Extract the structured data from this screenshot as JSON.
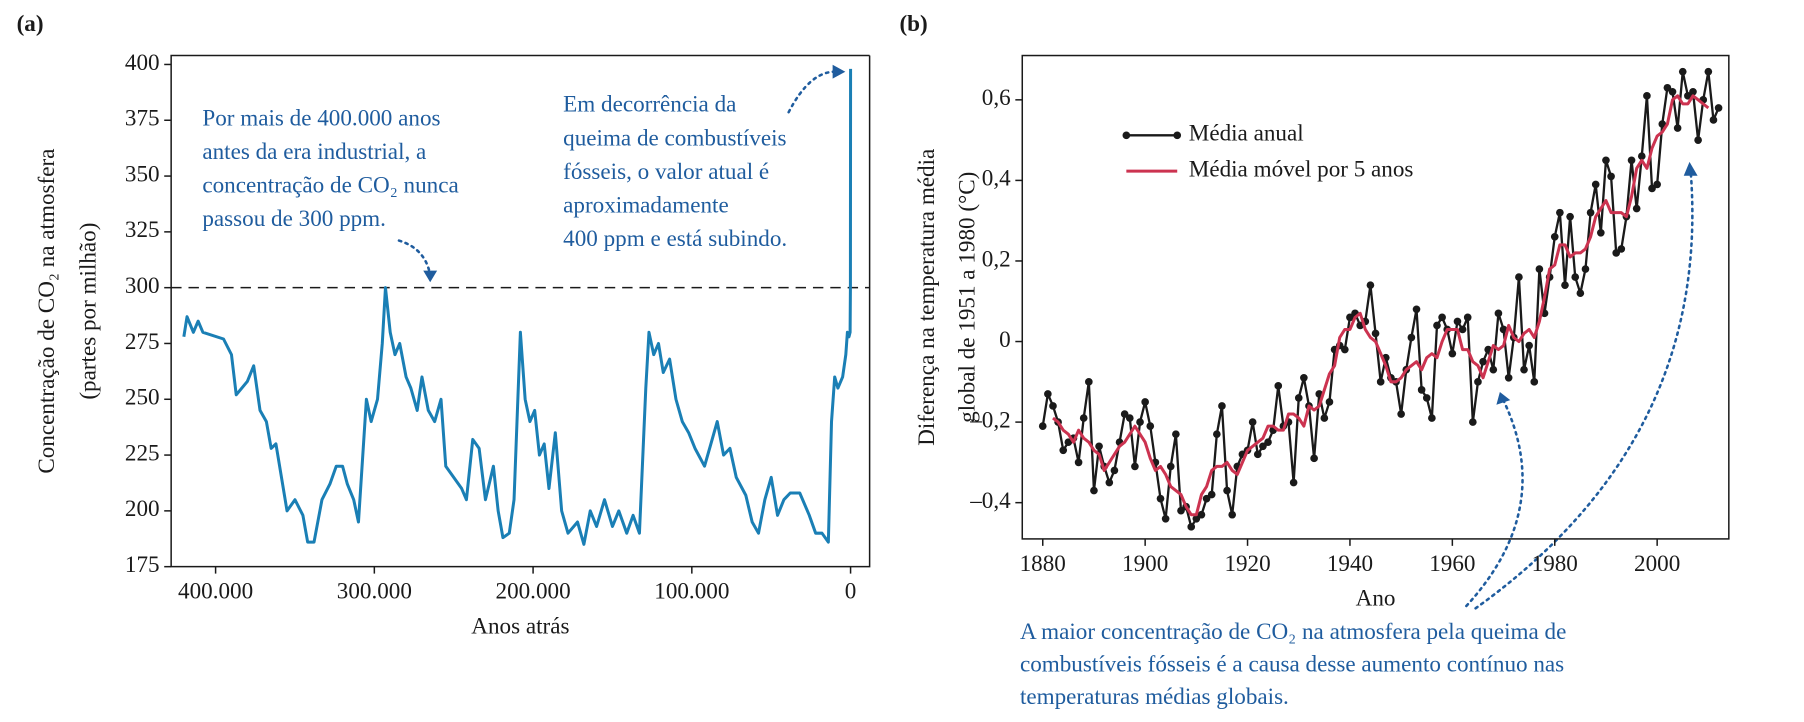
{
  "chart_data": [
    {
      "type": "line",
      "panel_label": "(a)",
      "ylabel": [
        "Concentração de CO₂ na atmosfera",
        "(partes por milhão)"
      ],
      "xlabel": "Anos atrás",
      "x": [
        420000,
        418000,
        414000,
        411000,
        408000,
        395000,
        390000,
        387000,
        380000,
        376000,
        372000,
        368000,
        365000,
        362000,
        355000,
        350000,
        345000,
        342000,
        338000,
        333000,
        328000,
        324000,
        320000,
        317000,
        313000,
        310000,
        305000,
        302000,
        298000,
        295000,
        293000,
        290000,
        287000,
        284000,
        280000,
        277000,
        273000,
        270000,
        266000,
        262000,
        258000,
        255000,
        250000,
        245000,
        242000,
        238000,
        234000,
        230000,
        225000,
        222000,
        219000,
        215000,
        212000,
        208000,
        205000,
        202000,
        199000,
        196000,
        193000,
        190000,
        186000,
        182000,
        178000,
        172000,
        168000,
        164000,
        160000,
        155000,
        150000,
        146000,
        141000,
        137000,
        133000,
        129000,
        127000,
        124000,
        121000,
        118000,
        114000,
        110000,
        106000,
        102000,
        98000,
        92000,
        88000,
        84000,
        80000,
        76000,
        72000,
        66000,
        62000,
        58000,
        54000,
        50000,
        46000,
        42000,
        38000,
        32000,
        26000,
        22000,
        18000,
        14000,
        12000,
        10000,
        8000,
        5000,
        3000,
        2000,
        1000,
        300,
        100,
        0
      ],
      "values": [
        278,
        287,
        280,
        285,
        280,
        277,
        270,
        252,
        258,
        265,
        245,
        240,
        228,
        230,
        200,
        205,
        198,
        186,
        186,
        205,
        212,
        220,
        220,
        212,
        205,
        195,
        250,
        240,
        250,
        275,
        300,
        280,
        270,
        275,
        260,
        255,
        245,
        260,
        245,
        240,
        250,
        220,
        215,
        210,
        205,
        232,
        228,
        205,
        220,
        200,
        188,
        190,
        205,
        280,
        250,
        240,
        245,
        225,
        230,
        210,
        235,
        200,
        190,
        195,
        185,
        200,
        193,
        205,
        193,
        200,
        190,
        198,
        190,
        255,
        280,
        270,
        275,
        262,
        268,
        250,
        240,
        235,
        228,
        220,
        230,
        240,
        225,
        228,
        215,
        207,
        195,
        190,
        205,
        215,
        198,
        205,
        208,
        208,
        198,
        190,
        190,
        186,
        240,
        260,
        255,
        260,
        270,
        280,
        278,
        280,
        300,
        398
      ],
      "color": "#1a7fb5",
      "xlim": [
        428000,
        -12000
      ],
      "xticks": [
        {
          "value": 400000,
          "label": "400.000"
        },
        {
          "value": 300000,
          "label": "300.000"
        },
        {
          "value": 200000,
          "label": "200.000"
        },
        {
          "value": 100000,
          "label": "100.000"
        },
        0
      ],
      "ylim": [
        175,
        404
      ],
      "yticks": [
        175,
        200,
        225,
        250,
        275,
        300,
        325,
        350,
        375,
        400
      ],
      "reference_line": 300,
      "annotations": [
        [
          "Por mais de 400.000 anos",
          "antes da era industrial, a",
          "concentração de CO₂ nunca",
          "passou de 300 ppm."
        ],
        [
          "Em decorrência da",
          "queima de combustíveis",
          "fósseis, o valor atual é",
          "aproximadamente",
          "400 ppm e está subindo."
        ]
      ]
    },
    {
      "type": "line",
      "panel_label": "(b)",
      "ylabel": [
        "Diferença na temperatura média",
        "global de 1951 a 1980 (°C)"
      ],
      "xlabel": "Ano",
      "legend": "upper left",
      "x": [
        1880,
        1881,
        1882,
        1883,
        1884,
        1885,
        1886,
        1887,
        1888,
        1889,
        1890,
        1891,
        1892,
        1893,
        1894,
        1895,
        1896,
        1897,
        1898,
        1899,
        1900,
        1901,
        1902,
        1903,
        1904,
        1905,
        1906,
        1907,
        1908,
        1909,
        1910,
        1911,
        1912,
        1913,
        1914,
        1915,
        1916,
        1917,
        1918,
        1919,
        1920,
        1921,
        1922,
        1923,
        1924,
        1925,
        1926,
        1927,
        1928,
        1929,
        1930,
        1931,
        1932,
        1933,
        1934,
        1935,
        1936,
        1937,
        1938,
        1939,
        1940,
        1941,
        1942,
        1943,
        1944,
        1945,
        1946,
        1947,
        1948,
        1949,
        1950,
        1951,
        1952,
        1953,
        1954,
        1955,
        1956,
        1957,
        1958,
        1959,
        1960,
        1961,
        1962,
        1963,
        1964,
        1965,
        1966,
        1967,
        1968,
        1969,
        1970,
        1971,
        1972,
        1973,
        1974,
        1975,
        1976,
        1977,
        1978,
        1979,
        1980,
        1981,
        1982,
        1983,
        1984,
        1985,
        1986,
        1987,
        1988,
        1989,
        1990,
        1991,
        1992,
        1993,
        1994,
        1995,
        1996,
        1997,
        1998,
        1999,
        2000,
        2001,
        2002,
        2003,
        2004,
        2005,
        2006,
        2007,
        2008,
        2009,
        2010,
        2011,
        2012
      ],
      "series": [
        {
          "name": "Média anual",
          "color": "#1a1a1a",
          "marker": true,
          "values": [
            -0.21,
            -0.13,
            -0.16,
            -0.2,
            -0.27,
            -0.25,
            -0.24,
            -0.3,
            -0.19,
            -0.1,
            -0.37,
            -0.26,
            -0.31,
            -0.35,
            -0.32,
            -0.25,
            -0.18,
            -0.19,
            -0.31,
            -0.2,
            -0.15,
            -0.21,
            -0.3,
            -0.39,
            -0.44,
            -0.31,
            -0.23,
            -0.42,
            -0.41,
            -0.46,
            -0.44,
            -0.43,
            -0.39,
            -0.38,
            -0.23,
            -0.16,
            -0.37,
            -0.43,
            -0.31,
            -0.28,
            -0.27,
            -0.2,
            -0.28,
            -0.26,
            -0.25,
            -0.22,
            -0.11,
            -0.21,
            -0.2,
            -0.35,
            -0.14,
            -0.09,
            -0.16,
            -0.29,
            -0.13,
            -0.19,
            -0.15,
            -0.02,
            -0.01,
            -0.02,
            0.06,
            0.07,
            0.04,
            0.05,
            0.14,
            0.02,
            -0.1,
            -0.04,
            -0.09,
            -0.1,
            -0.18,
            -0.07,
            0.01,
            0.08,
            -0.12,
            -0.14,
            -0.19,
            0.04,
            0.06,
            0.03,
            -0.03,
            0.05,
            0.03,
            0.06,
            -0.2,
            -0.1,
            -0.05,
            -0.02,
            -0.07,
            0.07,
            0.03,
            -0.09,
            0.01,
            0.16,
            -0.07,
            -0.01,
            -0.1,
            0.18,
            0.07,
            0.16,
            0.26,
            0.32,
            0.14,
            0.31,
            0.16,
            0.12,
            0.18,
            0.32,
            0.39,
            0.27,
            0.45,
            0.41,
            0.22,
            0.23,
            0.31,
            0.45,
            0.33,
            0.46,
            0.61,
            0.38,
            0.39,
            0.54,
            0.63,
            0.62,
            0.53,
            0.67,
            0.61,
            0.62,
            0.5,
            0.6,
            0.67,
            0.55,
            0.58
          ]
        },
        {
          "name": "Média móvel por 5 anos",
          "color": "#cc3350",
          "marker": false,
          "values": [
            null,
            null,
            -0.19,
            -0.2,
            -0.22,
            -0.23,
            -0.25,
            -0.22,
            -0.24,
            -0.25,
            -0.27,
            -0.28,
            -0.32,
            -0.3,
            -0.28,
            -0.26,
            -0.25,
            -0.23,
            -0.21,
            -0.23,
            -0.25,
            -0.29,
            -0.32,
            -0.31,
            -0.33,
            -0.36,
            -0.37,
            -0.38,
            -0.41,
            -0.43,
            -0.43,
            -0.38,
            -0.36,
            -0.32,
            -0.31,
            -0.31,
            -0.3,
            -0.32,
            -0.33,
            -0.3,
            -0.27,
            -0.26,
            -0.25,
            -0.24,
            -0.21,
            -0.21,
            -0.22,
            -0.22,
            -0.18,
            -0.18,
            -0.19,
            -0.21,
            -0.16,
            -0.17,
            -0.16,
            -0.12,
            -0.08,
            -0.06,
            0.01,
            0.03,
            0.03,
            0.06,
            0.07,
            0.03,
            0.01,
            0,
            -0.03,
            -0.06,
            -0.1,
            -0.1,
            -0.09,
            -0.07,
            -0.06,
            -0.05,
            -0.07,
            -0.04,
            -0.03,
            -0.04,
            0,
            0.03,
            0.03,
            0.03,
            -0.02,
            -0.02,
            -0.05,
            -0.06,
            -0.09,
            -0.05,
            -0.01,
            -0.02,
            -0.01,
            0.04,
            0.01,
            0,
            0.02,
            0.03,
            0.01,
            0.05,
            0.11,
            0.18,
            0.19,
            0.24,
            0.24,
            0.21,
            0.22,
            0.22,
            0.23,
            0.26,
            0.31,
            0.33,
            0.35,
            0.32,
            0.32,
            0.32,
            0.31,
            0.36,
            0.43,
            0.45,
            0.43,
            0.48,
            0.51,
            0.52,
            0.54,
            0.6,
            0.61,
            0.59,
            0.59,
            0.61,
            0.6,
            0.59,
            0.58,
            null,
            null
          ]
        }
      ],
      "xlim": [
        1876,
        2014
      ],
      "xticks": [
        1880,
        1900,
        1920,
        1940,
        1960,
        1980,
        2000
      ],
      "ylim": [
        -0.49,
        0.71
      ],
      "yticks": [
        {
          "value": -0.4,
          "label": "–0,4"
        },
        {
          "value": -0.2,
          "label": "–0,2"
        },
        0,
        {
          "value": 0.2,
          "label": "0,2"
        },
        {
          "value": 0.4,
          "label": "0,4"
        },
        {
          "value": 0.6,
          "label": "0,6"
        }
      ],
      "annotations": [
        [
          "A maior concentração de CO₂ na atmosfera pela queima de",
          "combustíveis fósseis é a causa desse aumento contínuo nas",
          "temperaturas médias globais."
        ]
      ]
    }
  ]
}
